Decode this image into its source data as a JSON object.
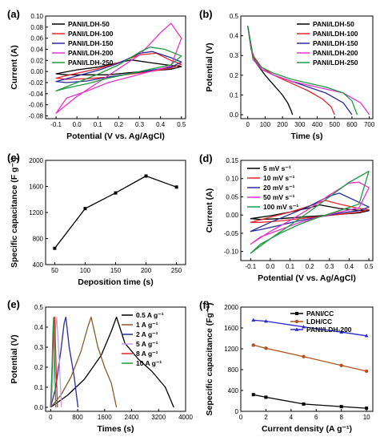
{
  "chart_data": [
    {
      "id": "a",
      "type": "line",
      "panel_label": "(a)",
      "xlabel": "Potential (V vs. Ag/AgCl)",
      "ylabel": "Current (A)",
      "xlim": [
        -0.15,
        0.52
      ],
      "ylim": [
        -0.085,
        0.1
      ],
      "xticks": [
        "-0.1",
        "0.0",
        "0.1",
        "0.2",
        "0.3",
        "0.4",
        "0.5"
      ],
      "yticks": [
        "-0.08",
        "-0.06",
        "-0.04",
        "-0.02",
        "0.00",
        "0.02",
        "0.04",
        "0.06",
        "0.08",
        "0.10"
      ],
      "legend_position": "top-left",
      "series": [
        {
          "name": "PANI/LDH-50",
          "color": "#000000",
          "x": [
            -0.1,
            0.0,
            0.1,
            0.2,
            0.26,
            0.35,
            0.45,
            0.5,
            0.45,
            0.35,
            0.25,
            0.15,
            0.05,
            -0.05,
            -0.1
          ],
          "y": [
            -0.004,
            0.003,
            0.008,
            0.016,
            0.021,
            0.016,
            0.011,
            0.009,
            0.004,
            0.001,
            -0.002,
            -0.006,
            -0.006,
            -0.006,
            -0.004
          ]
        },
        {
          "name": "PANI/LDH-100",
          "color": "#e8262b",
          "x": [
            -0.1,
            0.0,
            0.1,
            0.2,
            0.3,
            0.38,
            0.45,
            0.5,
            0.45,
            0.35,
            0.25,
            0.15,
            0.05,
            -0.05,
            -0.1
          ],
          "y": [
            -0.012,
            -0.003,
            0.005,
            0.016,
            0.03,
            0.033,
            0.02,
            0.013,
            0.006,
            0.0,
            -0.005,
            -0.01,
            -0.013,
            -0.014,
            -0.012
          ]
        },
        {
          "name": "PANI/LDH-150",
          "color": "#2a2a9c",
          "x": [
            -0.1,
            0.0,
            0.1,
            0.2,
            0.3,
            0.36,
            0.45,
            0.5,
            0.45,
            0.35,
            0.25,
            0.15,
            0.05,
            -0.05,
            -0.1
          ],
          "y": [
            -0.018,
            -0.008,
            0.002,
            0.015,
            0.033,
            0.036,
            0.025,
            0.017,
            0.008,
            0.002,
            -0.004,
            -0.01,
            -0.017,
            -0.02,
            -0.018
          ]
        },
        {
          "name": "PANI/LDH-200",
          "color": "#e832c8",
          "x": [
            -0.1,
            0.0,
            0.1,
            0.2,
            0.3,
            0.4,
            0.45,
            0.5,
            0.45,
            0.35,
            0.25,
            0.15,
            0.05,
            -0.05,
            -0.1
          ],
          "y": [
            -0.075,
            -0.045,
            -0.02,
            0.005,
            0.03,
            0.07,
            0.087,
            0.06,
            0.01,
            0.0,
            -0.01,
            -0.02,
            -0.035,
            -0.048,
            -0.075
          ]
        },
        {
          "name": "PANI/LDH-250",
          "color": "#1e9a40",
          "x": [
            -0.1,
            0.0,
            0.1,
            0.2,
            0.3,
            0.35,
            0.42,
            0.5,
            0.45,
            0.35,
            0.25,
            0.15,
            0.05,
            -0.05,
            -0.1
          ],
          "y": [
            -0.035,
            -0.02,
            -0.005,
            0.012,
            0.035,
            0.044,
            0.04,
            0.028,
            0.012,
            0.004,
            -0.004,
            -0.012,
            -0.022,
            -0.03,
            -0.035
          ]
        }
      ]
    },
    {
      "id": "b",
      "type": "line",
      "panel_label": "(b)",
      "xlabel": "Time (s)",
      "ylabel": "Potential (V)",
      "xlim": [
        -40,
        720
      ],
      "ylim": [
        -0.02,
        0.5
      ],
      "xticks": [
        "0",
        "100",
        "200",
        "300",
        "400",
        "500",
        "600",
        "700"
      ],
      "yticks": [
        "0.0",
        "0.1",
        "0.2",
        "0.3",
        "0.4",
        "0.5"
      ],
      "legend_position": "top-right",
      "series": [
        {
          "name": "PANI/LDH-50",
          "color": "#000000",
          "x": [
            0,
            20,
            50,
            100,
            150,
            200,
            230,
            250,
            258
          ],
          "y": [
            0.45,
            0.33,
            0.26,
            0.2,
            0.15,
            0.1,
            0.06,
            0.02,
            0.0
          ]
        },
        {
          "name": "PANI/LDH-100",
          "color": "#e8262b",
          "x": [
            0,
            30,
            80,
            150,
            250,
            350,
            430,
            480,
            500
          ],
          "y": [
            0.45,
            0.3,
            0.24,
            0.2,
            0.16,
            0.12,
            0.08,
            0.04,
            0.0
          ]
        },
        {
          "name": "PANI/LDH-150",
          "color": "#2a2a9c",
          "x": [
            0,
            30,
            80,
            150,
            250,
            350,
            450,
            550,
            600
          ],
          "y": [
            0.45,
            0.29,
            0.23,
            0.2,
            0.17,
            0.14,
            0.11,
            0.06,
            0.0
          ]
        },
        {
          "name": "PANI/LDH-200",
          "color": "#e832c8",
          "x": [
            0,
            30,
            80,
            150,
            250,
            350,
            450,
            550,
            650,
            700
          ],
          "y": [
            0.45,
            0.28,
            0.23,
            0.2,
            0.17,
            0.15,
            0.13,
            0.11,
            0.06,
            0.0
          ]
        },
        {
          "name": "PANI/LDH-250",
          "color": "#1e9a40",
          "x": [
            0,
            30,
            80,
            150,
            250,
            350,
            450,
            550,
            600,
            630
          ],
          "y": [
            0.45,
            0.29,
            0.24,
            0.21,
            0.18,
            0.16,
            0.14,
            0.11,
            0.07,
            0.0
          ]
        }
      ]
    },
    {
      "id": "c",
      "type": "line",
      "panel_label": "(c)",
      "xlabel": "Deposition time (s)",
      "ylabel": "Specific capacitance (F g⁻¹)",
      "xlim": [
        35,
        265
      ],
      "ylim": [
        400,
        2000
      ],
      "xticks": [
        "50",
        "100",
        "150",
        "200",
        "250"
      ],
      "yticks": [
        "400",
        "800",
        "1200",
        "1600",
        "2000"
      ],
      "series": [
        {
          "name": "",
          "color": "#000000",
          "x": [
            50,
            100,
            150,
            200,
            250
          ],
          "y": [
            650,
            1260,
            1500,
            1760,
            1590
          ]
        }
      ]
    },
    {
      "id": "d",
      "type": "line",
      "panel_label": "(d)",
      "xlabel": "Potential (V vs. Ag/AgCl)",
      "ylabel": "Current (A)",
      "xlim": [
        -0.15,
        0.52
      ],
      "ylim": [
        -0.125,
        0.15
      ],
      "xticks": [
        "-0.1",
        "0.0",
        "0.1",
        "0.2",
        "0.3",
        "0.4",
        "0.5"
      ],
      "yticks": [
        "-0.10",
        "-0.05",
        "0.00",
        "0.05",
        "0.10",
        "0.15"
      ],
      "legend_position": "top-left",
      "series": [
        {
          "name": "5 mV s⁻¹",
          "color": "#000000",
          "x": [
            -0.1,
            0.0,
            0.1,
            0.2,
            0.25,
            0.35,
            0.45,
            0.5,
            0.45,
            0.35,
            0.25,
            0.15,
            0.05,
            -0.05,
            -0.1
          ],
          "y": [
            -0.01,
            -0.002,
            0.008,
            0.02,
            0.028,
            0.018,
            0.013,
            0.012,
            0.006,
            0.002,
            -0.002,
            -0.006,
            -0.01,
            -0.012,
            -0.01
          ]
        },
        {
          "name": "10 mV s⁻¹",
          "color": "#e8262b",
          "x": [
            -0.1,
            0.0,
            0.1,
            0.2,
            0.28,
            0.35,
            0.45,
            0.5,
            0.45,
            0.35,
            0.25,
            0.15,
            0.05,
            -0.05,
            -0.1
          ],
          "y": [
            -0.02,
            -0.006,
            0.008,
            0.025,
            0.04,
            0.03,
            0.018,
            0.015,
            0.008,
            0.002,
            -0.004,
            -0.01,
            -0.016,
            -0.02,
            -0.02
          ]
        },
        {
          "name": "20 mV s⁻¹",
          "color": "#2a2a9c",
          "x": [
            -0.1,
            0.0,
            0.1,
            0.2,
            0.3,
            0.35,
            0.45,
            0.5,
            0.45,
            0.35,
            0.25,
            0.15,
            0.05,
            -0.05,
            -0.1
          ],
          "y": [
            -0.045,
            -0.02,
            0.002,
            0.025,
            0.052,
            0.06,
            0.035,
            0.022,
            0.012,
            0.005,
            -0.005,
            -0.015,
            -0.028,
            -0.04,
            -0.045
          ]
        },
        {
          "name": "50 mV s⁻¹",
          "color": "#e832c8",
          "x": [
            -0.1,
            0.0,
            0.1,
            0.2,
            0.3,
            0.4,
            0.45,
            0.5,
            0.45,
            0.35,
            0.25,
            0.15,
            0.05,
            -0.05,
            -0.1
          ],
          "y": [
            -0.08,
            -0.045,
            -0.015,
            0.018,
            0.055,
            0.088,
            0.09,
            0.075,
            0.02,
            0.008,
            -0.005,
            -0.02,
            -0.04,
            -0.06,
            -0.08
          ]
        },
        {
          "name": "100 mV s⁻¹",
          "color": "#1e9a40",
          "x": [
            -0.1,
            0.0,
            0.1,
            0.2,
            0.3,
            0.4,
            0.45,
            0.5,
            0.45,
            0.35,
            0.25,
            0.15,
            0.05,
            -0.05,
            -0.1
          ],
          "y": [
            -0.105,
            -0.065,
            -0.028,
            0.01,
            0.05,
            0.09,
            0.105,
            0.12,
            0.03,
            0.012,
            -0.005,
            -0.025,
            -0.05,
            -0.08,
            -0.105
          ]
        }
      ]
    },
    {
      "id": "e",
      "type": "line",
      "panel_label": "(e)",
      "xlabel": "Times (s)",
      "ylabel": "Potential (V)",
      "xlim": [
        -150,
        4000
      ],
      "ylim": [
        -0.02,
        0.5
      ],
      "xticks": [
        "0",
        "800",
        "1600",
        "2400",
        "3200",
        "4000"
      ],
      "yticks": [
        "0.0",
        "0.1",
        "0.2",
        "0.3",
        "0.4",
        "0.5"
      ],
      "legend_position": "top-right",
      "series": [
        {
          "name": "0.5 A g⁻¹",
          "color": "#000000",
          "x": [
            0,
            500,
            1000,
            1500,
            1800,
            1950,
            2200,
            2600,
            3000,
            3400,
            3650
          ],
          "y": [
            0.0,
            0.06,
            0.14,
            0.26,
            0.38,
            0.45,
            0.32,
            0.24,
            0.18,
            0.1,
            0.0
          ]
        },
        {
          "name": "1 A g⁻¹",
          "color": "#8a5a2b",
          "x": [
            0,
            300,
            600,
            900,
            1100,
            1200,
            1400,
            1600,
            1800,
            1950
          ],
          "y": [
            0.0,
            0.06,
            0.15,
            0.28,
            0.4,
            0.45,
            0.3,
            0.2,
            0.12,
            0.0
          ]
        },
        {
          "name": "2 A g⁻¹",
          "color": "#2a2a9c",
          "x": [
            0,
            150,
            300,
            400,
            450,
            550,
            700,
            810
          ],
          "y": [
            0.0,
            0.1,
            0.28,
            0.42,
            0.45,
            0.3,
            0.15,
            0.0
          ]
        },
        {
          "name": "5 A g⁻¹",
          "color": "#c9a0e0",
          "x": [
            0,
            80,
            140,
            180,
            250,
            320
          ],
          "y": [
            0.0,
            0.15,
            0.38,
            0.45,
            0.25,
            0.0
          ]
        },
        {
          "name": "8 A g⁻¹",
          "color": "#e8262b",
          "x": [
            0,
            50,
            90,
            120,
            160,
            200
          ],
          "y": [
            0.0,
            0.2,
            0.4,
            0.45,
            0.2,
            0.0
          ]
        },
        {
          "name": "10 A g⁻¹",
          "color": "#1e9a40",
          "x": [
            0,
            40,
            70,
            90,
            120,
            150
          ],
          "y": [
            0.0,
            0.2,
            0.4,
            0.45,
            0.2,
            0.0
          ]
        }
      ]
    },
    {
      "id": "f",
      "type": "line",
      "panel_label": "(f)",
      "xlabel": "Current density (A g⁻¹)",
      "ylabel": "Sepecific capacitance (Fg⁻¹)",
      "xlim": [
        0,
        10.5
      ],
      "ylim": [
        0,
        2000
      ],
      "xticks": [
        "0",
        "2",
        "4",
        "6",
        "8",
        "10"
      ],
      "yticks": [
        "0",
        "400",
        "800",
        "1200",
        "1600",
        "2000"
      ],
      "legend_position": "top-right",
      "series": [
        {
          "name": "PANI/CC",
          "color": "#000000",
          "marker": "square",
          "x": [
            1,
            2,
            5,
            8,
            10
          ],
          "y": [
            320,
            270,
            140,
            90,
            60
          ]
        },
        {
          "name": "LDH/CC",
          "color": "#b5521b",
          "marker": "circle",
          "x": [
            1,
            2,
            5,
            8,
            10
          ],
          "y": [
            1270,
            1210,
            1050,
            880,
            770
          ]
        },
        {
          "name": "PANI/LDH-200",
          "color": "#2a2acc",
          "marker": "triangle",
          "x": [
            1,
            2,
            5,
            8,
            10
          ],
          "y": [
            1750,
            1730,
            1620,
            1520,
            1450
          ]
        }
      ]
    }
  ]
}
